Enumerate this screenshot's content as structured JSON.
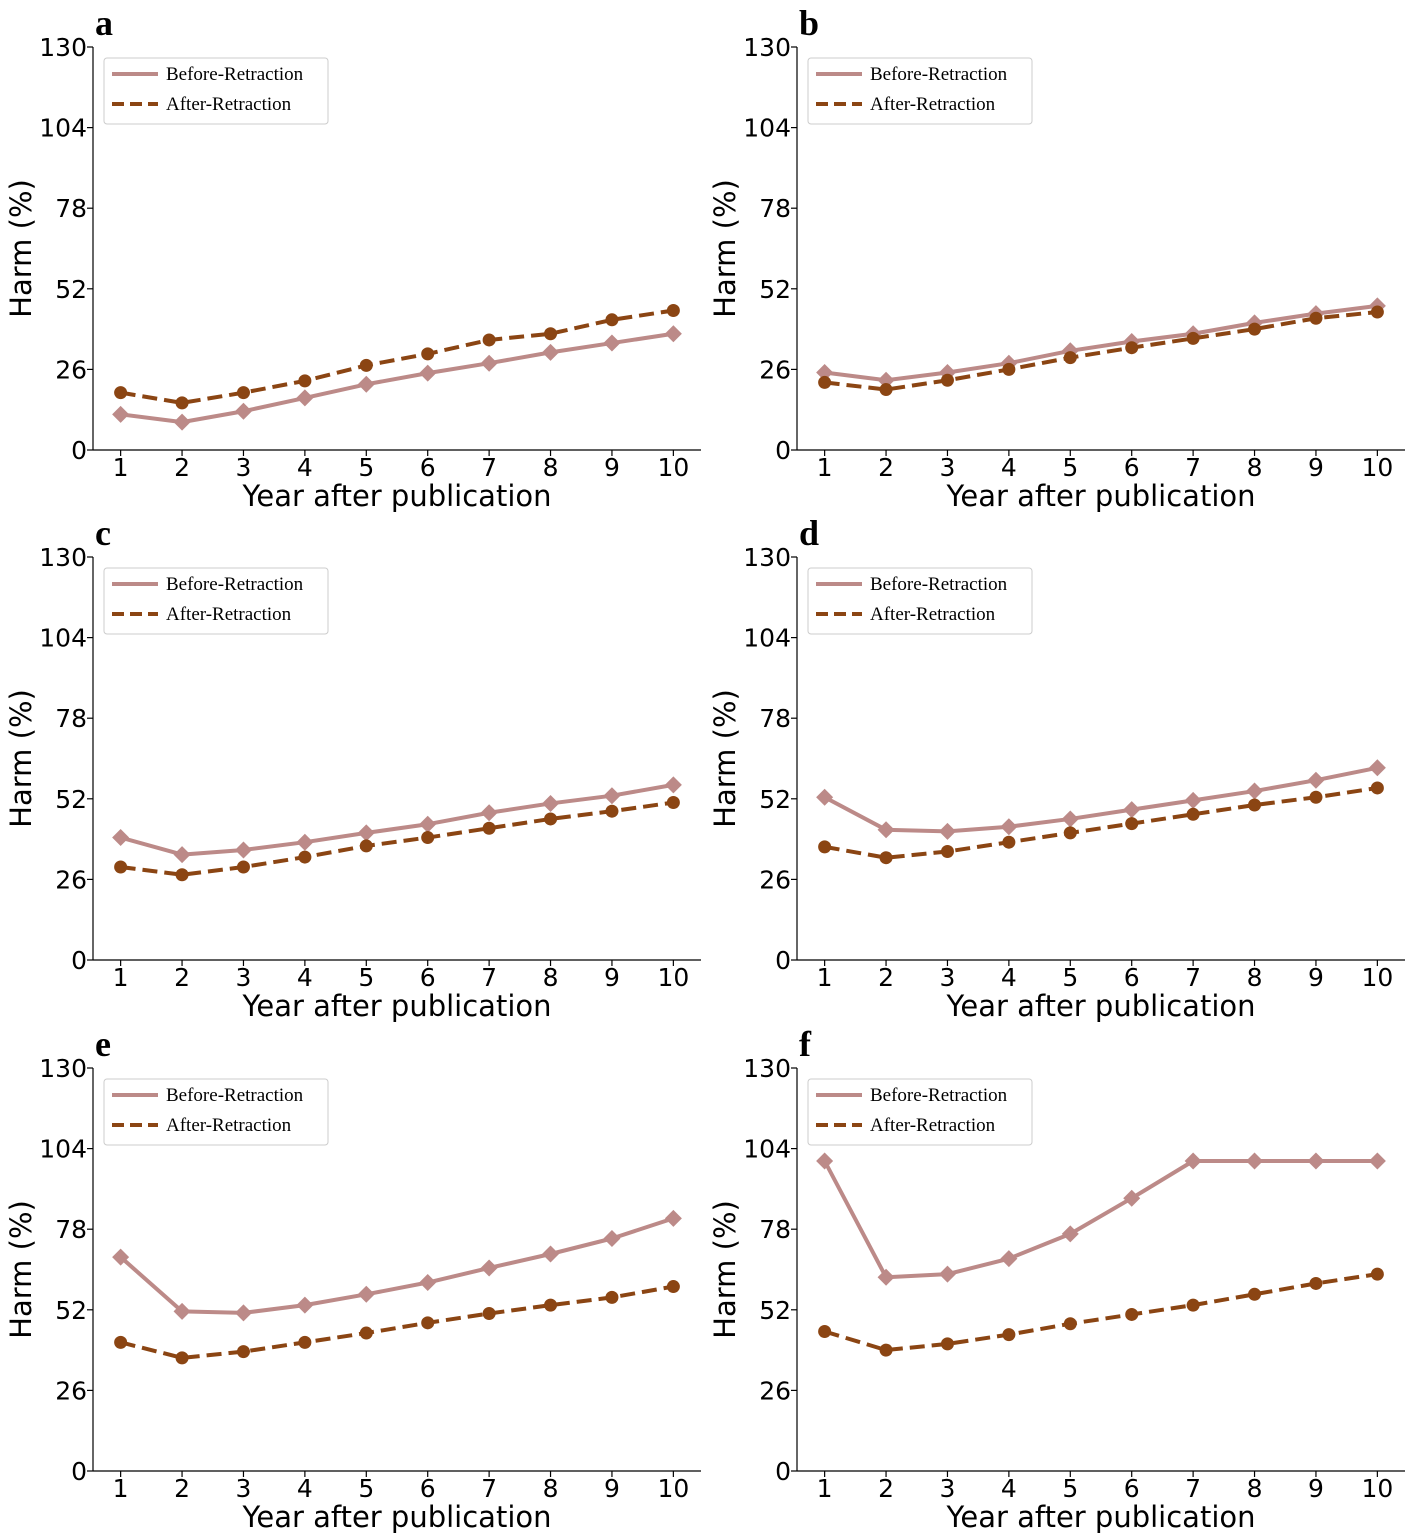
{
  "figure": {
    "legend_labels": [
      "Before-Retraction",
      "After-Retraction"
    ],
    "colors": {
      "before": "#bc8a88",
      "after": "#8b4513",
      "axis": "#000000",
      "legend_border": "#cccccc"
    }
  },
  "chart_data": [
    {
      "panel": "a",
      "type": "line",
      "xlabel": "Year after publication",
      "ylabel": "Harm (%)",
      "x": [
        1,
        2,
        3,
        4,
        5,
        6,
        7,
        8,
        9,
        10
      ],
      "xticks": [
        "1",
        "2",
        "3",
        "4",
        "5",
        "6",
        "7",
        "8",
        "9",
        "10"
      ],
      "yticks": [
        "0",
        "26",
        "52",
        "78",
        "104",
        "130"
      ],
      "ylim": [
        0,
        130
      ],
      "legend": "top-left",
      "series": [
        {
          "name": "Before-Retraction",
          "marker": "diamond",
          "style": "solid",
          "values": [
            11.5,
            9.0,
            12.5,
            16.8,
            21.2,
            24.8,
            28.0,
            31.5,
            34.5,
            37.5
          ]
        },
        {
          "name": "After-Retraction",
          "marker": "circle",
          "style": "dashed",
          "values": [
            18.5,
            15.2,
            18.5,
            22.3,
            27.3,
            31.0,
            35.5,
            37.5,
            42.0,
            45.0
          ]
        }
      ]
    },
    {
      "panel": "b",
      "type": "line",
      "xlabel": "Year after publication",
      "ylabel": "Harm (%)",
      "x": [
        1,
        2,
        3,
        4,
        5,
        6,
        7,
        8,
        9,
        10
      ],
      "xticks": [
        "1",
        "2",
        "3",
        "4",
        "5",
        "6",
        "7",
        "8",
        "9",
        "10"
      ],
      "yticks": [
        "0",
        "26",
        "52",
        "78",
        "104",
        "130"
      ],
      "ylim": [
        0,
        130
      ],
      "legend": "top-left",
      "series": [
        {
          "name": "Before-Retraction",
          "marker": "diamond",
          "style": "solid",
          "values": [
            25.0,
            22.5,
            25.0,
            28.0,
            32.0,
            35.0,
            37.5,
            41.0,
            44.0,
            46.5
          ]
        },
        {
          "name": "After-Retraction",
          "marker": "circle",
          "style": "dashed",
          "values": [
            21.8,
            19.5,
            22.5,
            26.0,
            29.8,
            33.0,
            36.0,
            39.0,
            42.5,
            44.5
          ]
        }
      ]
    },
    {
      "panel": "c",
      "type": "line",
      "xlabel": "Year after publication",
      "ylabel": "Harm (%)",
      "x": [
        1,
        2,
        3,
        4,
        5,
        6,
        7,
        8,
        9,
        10
      ],
      "xticks": [
        "1",
        "2",
        "3",
        "4",
        "5",
        "6",
        "7",
        "8",
        "9",
        "10"
      ],
      "yticks": [
        "0",
        "26",
        "52",
        "78",
        "104",
        "130"
      ],
      "ylim": [
        0,
        130
      ],
      "legend": "top-left",
      "series": [
        {
          "name": "Before-Retraction",
          "marker": "diamond",
          "style": "solid",
          "values": [
            39.5,
            34.0,
            35.5,
            38.0,
            41.0,
            43.8,
            47.5,
            50.5,
            53.0,
            56.5
          ]
        },
        {
          "name": "After-Retraction",
          "marker": "circle",
          "style": "dashed",
          "values": [
            30.0,
            27.5,
            30.0,
            33.2,
            36.8,
            39.5,
            42.5,
            45.5,
            48.0,
            50.8
          ]
        }
      ]
    },
    {
      "panel": "d",
      "type": "line",
      "xlabel": "Year after publication",
      "ylabel": "Harm (%)",
      "x": [
        1,
        2,
        3,
        4,
        5,
        6,
        7,
        8,
        9,
        10
      ],
      "xticks": [
        "1",
        "2",
        "3",
        "4",
        "5",
        "6",
        "7",
        "8",
        "9",
        "10"
      ],
      "yticks": [
        "0",
        "26",
        "52",
        "78",
        "104",
        "130"
      ],
      "ylim": [
        0,
        130
      ],
      "legend": "top-left",
      "series": [
        {
          "name": "Before-Retraction",
          "marker": "diamond",
          "style": "solid",
          "values": [
            52.5,
            42.0,
            41.5,
            43.0,
            45.5,
            48.5,
            51.5,
            54.5,
            58.0,
            62.0
          ]
        },
        {
          "name": "After-Retraction",
          "marker": "circle",
          "style": "dashed",
          "values": [
            36.5,
            33.0,
            35.0,
            38.0,
            41.0,
            44.0,
            47.0,
            50.0,
            52.5,
            55.5
          ]
        }
      ]
    },
    {
      "panel": "e",
      "type": "line",
      "xlabel": "Year after publication",
      "ylabel": "Harm (%)",
      "x": [
        1,
        2,
        3,
        4,
        5,
        6,
        7,
        8,
        9,
        10
      ],
      "xticks": [
        "1",
        "2",
        "3",
        "4",
        "5",
        "6",
        "7",
        "8",
        "9",
        "10"
      ],
      "yticks": [
        "0",
        "26",
        "52",
        "78",
        "104",
        "130"
      ],
      "ylim": [
        0,
        130
      ],
      "legend": "top-left",
      "series": [
        {
          "name": "Before-Retraction",
          "marker": "diamond",
          "style": "solid",
          "values": [
            69.0,
            51.5,
            51.0,
            53.5,
            57.0,
            60.8,
            65.5,
            70.0,
            75.0,
            81.5
          ]
        },
        {
          "name": "After-Retraction",
          "marker": "circle",
          "style": "dashed",
          "values": [
            41.5,
            36.5,
            38.5,
            41.5,
            44.5,
            47.8,
            50.8,
            53.5,
            56.0,
            59.5
          ]
        }
      ]
    },
    {
      "panel": "f",
      "type": "line",
      "xlabel": "Year after publication",
      "ylabel": "Harm (%)",
      "x": [
        1,
        2,
        3,
        4,
        5,
        6,
        7,
        8,
        9,
        10
      ],
      "xticks": [
        "1",
        "2",
        "3",
        "4",
        "5",
        "6",
        "7",
        "8",
        "9",
        "10"
      ],
      "yticks": [
        "0",
        "26",
        "52",
        "78",
        "104",
        "130"
      ],
      "ylim": [
        0,
        130
      ],
      "legend": "top-left",
      "series": [
        {
          "name": "Before-Retraction",
          "marker": "diamond",
          "style": "solid",
          "values": [
            100,
            62.5,
            63.5,
            68.5,
            76.5,
            88.0,
            100,
            100,
            100,
            100
          ]
        },
        {
          "name": "After-Retraction",
          "marker": "circle",
          "style": "dashed",
          "values": [
            45.0,
            39.0,
            41.0,
            44.0,
            47.5,
            50.5,
            53.5,
            57.0,
            60.5,
            63.5
          ]
        }
      ]
    }
  ]
}
